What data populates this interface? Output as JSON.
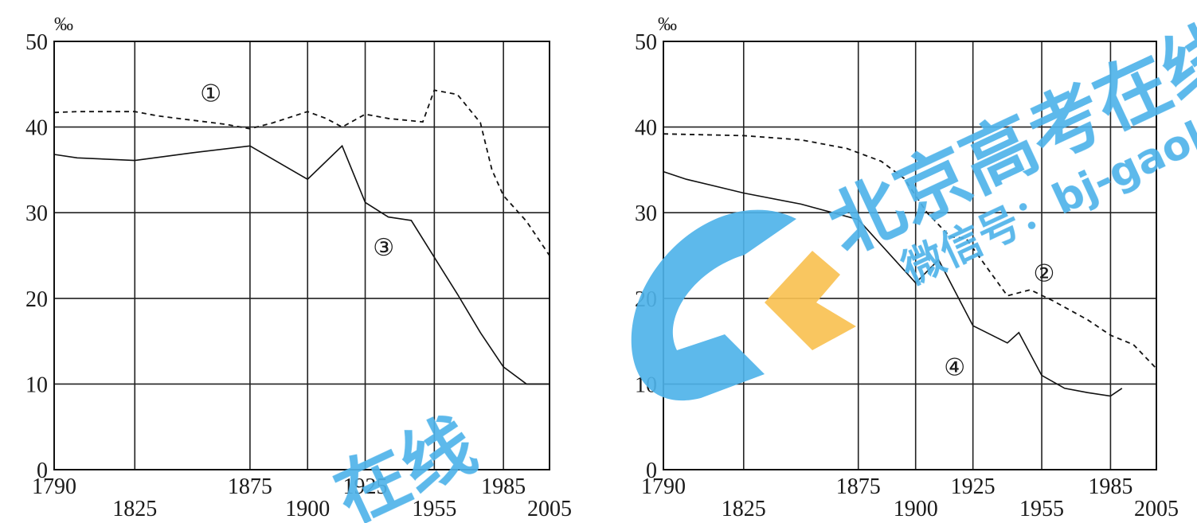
{
  "chart_data": [
    {
      "type": "line",
      "ylabel": "‰",
      "ylim": [
        0,
        50
      ],
      "yticks": [
        "0",
        "10",
        "20",
        "30",
        "40",
        "50"
      ],
      "xlim": [
        1790,
        2005
      ],
      "xticks": [
        {
          "label": "1790",
          "value": 1790,
          "row": "upper"
        },
        {
          "label": "1825",
          "value": 1825,
          "row": "lower"
        },
        {
          "label": "1875",
          "value": 1875,
          "row": "upper"
        },
        {
          "label": "1900",
          "value": 1900,
          "row": "lower"
        },
        {
          "label": "1925",
          "value": 1925,
          "row": "upper"
        },
        {
          "label": "1955",
          "value": 1955,
          "row": "lower"
        },
        {
          "label": "1985",
          "value": 1985,
          "row": "upper"
        },
        {
          "label": "2005",
          "value": 2005,
          "row": "lower"
        }
      ],
      "grid": true,
      "series": [
        {
          "name": "①",
          "style": "dashed",
          "points": [
            [
              1790,
              41.7
            ],
            [
              1800,
              41.8
            ],
            [
              1825,
              41.8
            ],
            [
              1835,
              41.3
            ],
            [
              1850,
              40.8
            ],
            [
              1865,
              40.3
            ],
            [
              1875,
              39.8
            ],
            [
              1885,
              40.5
            ],
            [
              1900,
              41.8
            ],
            [
              1908,
              41
            ],
            [
              1915,
              40
            ],
            [
              1925,
              41.5
            ],
            [
              1935,
              41
            ],
            [
              1950,
              40.6
            ],
            [
              1955,
              44.3
            ],
            [
              1965,
              43.8
            ],
            [
              1975,
              40.5
            ],
            [
              1980,
              35
            ],
            [
              1985,
              32
            ],
            [
              1995,
              29
            ],
            [
              2005,
              25
            ]
          ],
          "label_at": [
            1858,
            43
          ]
        },
        {
          "name": "③",
          "style": "solid",
          "points": [
            [
              1790,
              36.8
            ],
            [
              1800,
              36.4
            ],
            [
              1825,
              36.1
            ],
            [
              1850,
              37
            ],
            [
              1875,
              37.8
            ],
            [
              1900,
              33.9
            ],
            [
              1915,
              37.8
            ],
            [
              1925,
              31.2
            ],
            [
              1935,
              29.5
            ],
            [
              1945,
              29.1
            ],
            [
              1955,
              24.8
            ],
            [
              1965,
              20.5
            ],
            [
              1975,
              16
            ],
            [
              1985,
              12
            ],
            [
              1995,
              10
            ],
            [
              2005,
              10
            ]
          ],
          "label_at": [
            1933,
            25
          ]
        }
      ]
    },
    {
      "type": "line",
      "ylabel": "‰",
      "ylim": [
        0,
        50
      ],
      "yticks": [
        "0",
        "10",
        "20",
        "30",
        "40",
        "50"
      ],
      "xlim": [
        1790,
        2005
      ],
      "xticks": [
        {
          "label": "1790",
          "value": 1790,
          "row": "upper"
        },
        {
          "label": "1825",
          "value": 1825,
          "row": "lower"
        },
        {
          "label": "1875",
          "value": 1875,
          "row": "upper"
        },
        {
          "label": "1900",
          "value": 1900,
          "row": "lower"
        },
        {
          "label": "1925",
          "value": 1925,
          "row": "upper"
        },
        {
          "label": "1955",
          "value": 1955,
          "row": "lower"
        },
        {
          "label": "1985",
          "value": 1985,
          "row": "upper"
        },
        {
          "label": "2005",
          "value": 2005,
          "row": "lower"
        }
      ],
      "grid": true,
      "series": [
        {
          "name": "②",
          "style": "dashed",
          "points": [
            [
              1790,
              39.2
            ],
            [
              1825,
              39
            ],
            [
              1850,
              38.5
            ],
            [
              1870,
              37.5
            ],
            [
              1885,
              36
            ],
            [
              1895,
              34
            ],
            [
              1905,
              30
            ],
            [
              1915,
              27.2
            ],
            [
              1922,
              27
            ],
            [
              1930,
              24
            ],
            [
              1940,
              20.3
            ],
            [
              1950,
              21
            ],
            [
              1960,
              19.7
            ],
            [
              1975,
              17.5
            ],
            [
              1985,
              15.7
            ],
            [
              1995,
              14.6
            ],
            [
              2005,
              11.8
            ]
          ],
          "label_at": [
            1956,
            22
          ]
        },
        {
          "name": "④",
          "style": "solid",
          "points": [
            [
              1790,
              34.8
            ],
            [
              1800,
              33.9
            ],
            [
              1825,
              32.3
            ],
            [
              1850,
              31
            ],
            [
              1875,
              29.2
            ],
            [
              1900,
              21.8
            ],
            [
              1910,
              24.5
            ],
            [
              1925,
              16.8
            ],
            [
              1940,
              14.8
            ],
            [
              1945,
              16
            ],
            [
              1955,
              11
            ],
            [
              1965,
              9.5
            ],
            [
              1975,
              9
            ],
            [
              1985,
              8.6
            ],
            [
              1990,
              9.5
            ]
          ],
          "label_at": [
            1917,
            11
          ]
        }
      ]
    }
  ],
  "watermark": {
    "logo_letters": "GK",
    "title": "北京高考在线",
    "subtitle": "微信号：bj-gaokao",
    "bottom_fragment": "在线",
    "color": "#4fb3ea",
    "accent": "#f9c152"
  }
}
